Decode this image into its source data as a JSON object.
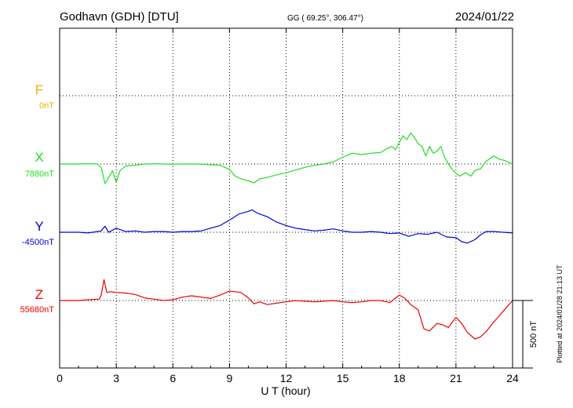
{
  "header": {
    "station": "Godhavn (GDH)  [DTU]",
    "coords": "GG ( 69.25°, 306.47°)",
    "date": "2024/01/22"
  },
  "footer": {
    "plotted": "Plotted at 2024/01/28 21:13 UT"
  },
  "colors": {
    "F": "#f0b000",
    "X": "#22dd22",
    "Y": "#0000dd",
    "Z": "#ee0000"
  },
  "chart_data": {
    "type": "line",
    "title": "Godhavn (GDH)  [DTU]",
    "xlabel": "U T (hour)",
    "xlim": [
      0,
      24
    ],
    "x_ticks": [
      0,
      3,
      6,
      9,
      12,
      15,
      18,
      21,
      24
    ],
    "x_tick_labels": [
      "0",
      "3",
      "6",
      "9",
      "12",
      "15",
      "18",
      "21",
      "24"
    ],
    "grid": "dotted vertical every 3 hours; dotted baseline per component",
    "scale_bar": {
      "value": 500,
      "label": "500 nT"
    },
    "series": [
      {
        "name": "F",
        "baseline_label": "0nT",
        "baseline_nT": 0,
        "x": [
          0,
          24
        ],
        "y": [
          null,
          null
        ]
      },
      {
        "name": "X",
        "baseline_label": "7880nT",
        "baseline_nT": 7880,
        "x": [
          0,
          1,
          1.5,
          2,
          2.2,
          2.4,
          2.6,
          2.8,
          3,
          3.2,
          3.5,
          4,
          4.5,
          5,
          5.5,
          6,
          6.5,
          7,
          7.5,
          8,
          8.5,
          9,
          9.3,
          9.6,
          10,
          10.3,
          10.6,
          11,
          11.5,
          12,
          12.5,
          13,
          13.5,
          14,
          14.5,
          15,
          15.5,
          16,
          16.5,
          17,
          17.3,
          17.6,
          17.8,
          18,
          18.2,
          18.4,
          18.6,
          18.8,
          19,
          19.2,
          19.4,
          19.6,
          19.8,
          20,
          20.2,
          20.4,
          20.6,
          20.8,
          21,
          21.2,
          21.5,
          21.8,
          22,
          22.3,
          22.6,
          23,
          23.3,
          23.6,
          24
        ],
        "y": [
          7880,
          7880,
          7882,
          7880,
          7855,
          7735,
          7780,
          7830,
          7745,
          7830,
          7865,
          7870,
          7880,
          7882,
          7880,
          7878,
          7880,
          7880,
          7878,
          7875,
          7870,
          7840,
          7790,
          7770,
          7755,
          7740,
          7770,
          7780,
          7800,
          7815,
          7835,
          7855,
          7870,
          7880,
          7895,
          7930,
          7960,
          7950,
          7960,
          7965,
          7990,
          8010,
          7985,
          8040,
          8090,
          8060,
          8110,
          8075,
          8030,
          8010,
          7940,
          8010,
          7960,
          7975,
          8010,
          7930,
          7880,
          7840,
          7810,
          7790,
          7815,
          7790,
          7830,
          7845,
          7900,
          7940,
          7915,
          7905,
          7880
        ]
      },
      {
        "name": "Y",
        "baseline_label": "-4500nT",
        "baseline_nT": -4500,
        "x": [
          0,
          1,
          1.5,
          2,
          2.2,
          2.4,
          2.6,
          3,
          3.5,
          4,
          4.5,
          5,
          5.5,
          6,
          6.5,
          7,
          7.5,
          8,
          8.5,
          9,
          9.5,
          10,
          10.2,
          10.5,
          11,
          11.5,
          12,
          12.5,
          13,
          13.5,
          14,
          14.5,
          15,
          15.5,
          16,
          16.5,
          17,
          17.5,
          18,
          18.5,
          19,
          19.5,
          20,
          20.5,
          21,
          21.3,
          21.6,
          22,
          22.3,
          22.6,
          23,
          23.5,
          24
        ],
        "y": [
          -4500,
          -4500,
          -4505,
          -4495,
          -4490,
          -4455,
          -4500,
          -4470,
          -4495,
          -4490,
          -4500,
          -4495,
          -4495,
          -4500,
          -4495,
          -4495,
          -4490,
          -4470,
          -4450,
          -4410,
          -4365,
          -4345,
          -4335,
          -4360,
          -4385,
          -4425,
          -4450,
          -4470,
          -4480,
          -4490,
          -4485,
          -4475,
          -4490,
          -4500,
          -4500,
          -4495,
          -4500,
          -4510,
          -4505,
          -4530,
          -4510,
          -4515,
          -4500,
          -4535,
          -4540,
          -4570,
          -4580,
          -4555,
          -4520,
          -4495,
          -4495,
          -4500,
          -4505
        ]
      },
      {
        "name": "Z",
        "baseline_label": "55680nT",
        "baseline_nT": 55680,
        "x": [
          0,
          1,
          1.5,
          2,
          2.1,
          2.2,
          2.35,
          2.5,
          2.7,
          3,
          3.5,
          4,
          4.5,
          5,
          5.5,
          6,
          6.5,
          7,
          7.5,
          8,
          8.5,
          9,
          9.3,
          9.6,
          10,
          10.3,
          10.6,
          11,
          11.5,
          12,
          12.5,
          13,
          13.5,
          14,
          14.5,
          15,
          15.5,
          16,
          16.5,
          17,
          17.5,
          18,
          18.3,
          18.6,
          19,
          19.3,
          19.6,
          20,
          20.3,
          20.6,
          21,
          21.3,
          21.6,
          22,
          22.3,
          22.6,
          23,
          23.5,
          24
        ],
        "y": [
          55680,
          55680,
          55685,
          55690,
          55690,
          55720,
          55835,
          55740,
          55745,
          55740,
          55735,
          55725,
          55700,
          55690,
          55680,
          55685,
          55705,
          55715,
          55705,
          55695,
          55720,
          55750,
          55745,
          55740,
          55700,
          55655,
          55670,
          55650,
          55660,
          55670,
          55680,
          55675,
          55670,
          55675,
          55680,
          55670,
          55665,
          55670,
          55680,
          55680,
          55665,
          55720,
          55695,
          55650,
          55610,
          55470,
          55455,
          55510,
          55500,
          55480,
          55555,
          55510,
          55445,
          55395,
          55410,
          55450,
          55520,
          55600,
          55680
        ]
      }
    ]
  }
}
